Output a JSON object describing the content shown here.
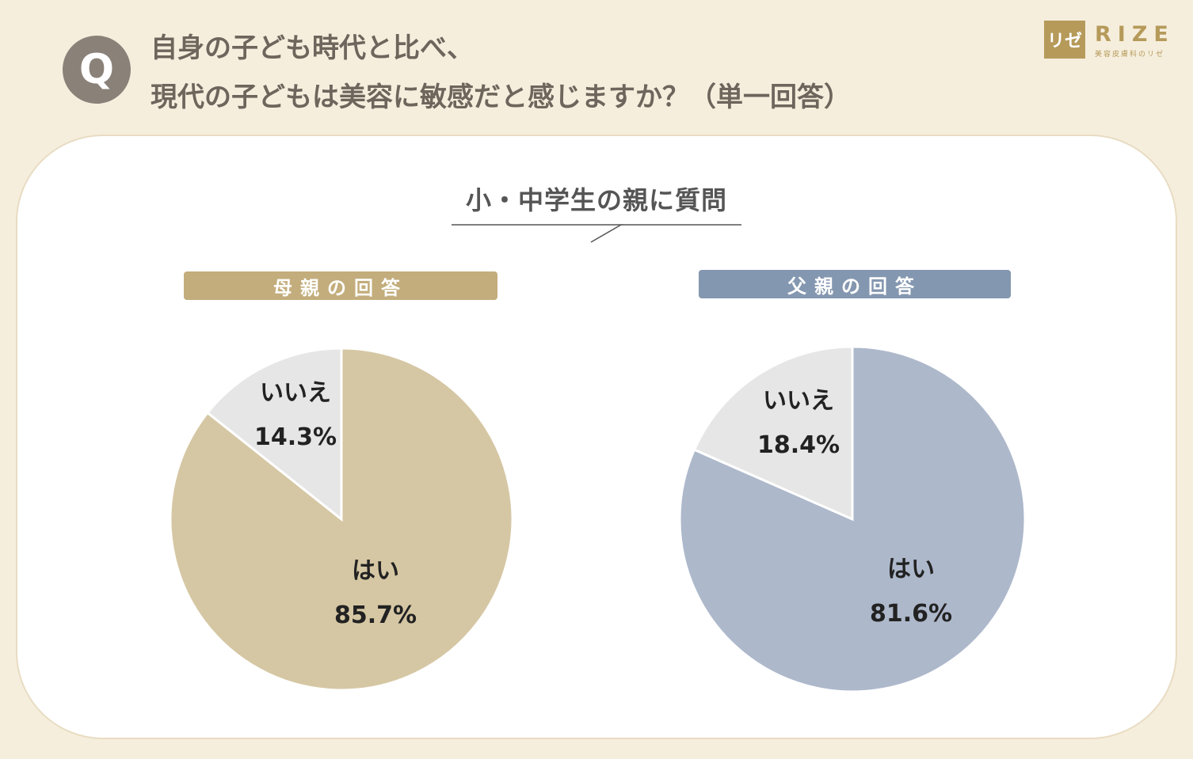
{
  "question": {
    "badge": "Q",
    "line1": "自身の子ども時代と比べ、",
    "line2": "現代の子どもは美容に敏感だと感じますか？（単一回答）"
  },
  "logo": {
    "mark": "リゼ",
    "word": "RIZE",
    "sub": "美容皮膚科のリゼ"
  },
  "subtitle": "小・中学生の親に質問",
  "chart_data": [
    {
      "type": "pie",
      "title": "母親の回答",
      "categories": [
        "はい",
        "いいえ"
      ],
      "values": [
        85.7,
        14.3
      ],
      "labels": [
        "85.7%",
        "14.3%"
      ],
      "colors": [
        "#d6c7a4",
        "#e6e6e6"
      ]
    },
    {
      "type": "pie",
      "title": "父親の回答",
      "categories": [
        "はい",
        "いいえ"
      ],
      "values": [
        81.6,
        18.4
      ],
      "labels": [
        "81.6%",
        "18.4%"
      ],
      "colors": [
        "#adb8cb",
        "#e6e6e6"
      ]
    }
  ]
}
